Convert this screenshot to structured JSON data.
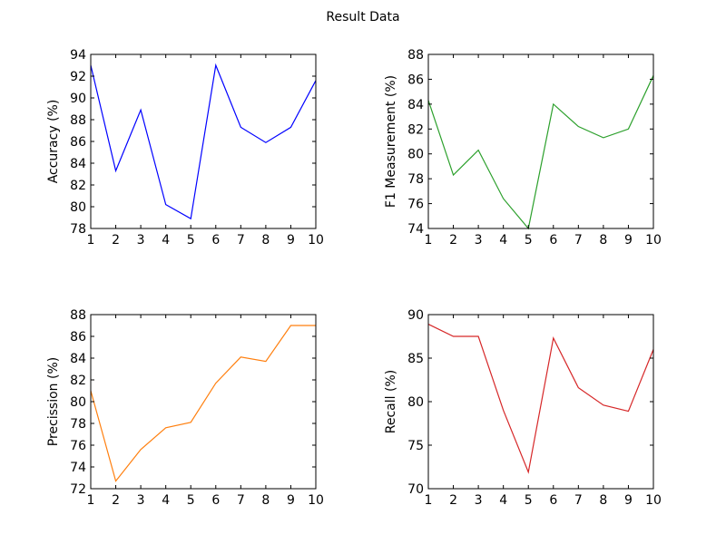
{
  "figure": {
    "title": "Result Data"
  },
  "chart_data": [
    {
      "type": "line",
      "title": "",
      "xlabel": "",
      "ylabel": "Accuracy (%)",
      "xlim": [
        1,
        10
      ],
      "ylim": [
        78,
        94
      ],
      "xticks": [
        1,
        2,
        3,
        4,
        5,
        6,
        7,
        8,
        9,
        10
      ],
      "yticks": [
        78,
        80,
        82,
        84,
        86,
        88,
        90,
        92,
        94
      ],
      "grid": false,
      "color": "#0000ff",
      "x": [
        1,
        2,
        3,
        4,
        5,
        6,
        7,
        8,
        9,
        10
      ],
      "y": [
        93.0,
        83.3,
        88.9,
        80.2,
        78.9,
        93.0,
        87.3,
        85.9,
        87.3,
        91.6
      ]
    },
    {
      "type": "line",
      "title": "",
      "xlabel": "",
      "ylabel": "F1 Measurement (%)",
      "xlim": [
        1,
        10
      ],
      "ylim": [
        74,
        88
      ],
      "xticks": [
        1,
        2,
        3,
        4,
        5,
        6,
        7,
        8,
        9,
        10
      ],
      "yticks": [
        74,
        76,
        78,
        80,
        82,
        84,
        86,
        88
      ],
      "grid": false,
      "color": "#2ca02c",
      "x": [
        1,
        2,
        3,
        4,
        5,
        6,
        7,
        8,
        9,
        10
      ],
      "y": [
        84.3,
        78.3,
        80.3,
        76.4,
        74.0,
        84.0,
        82.2,
        81.3,
        82.0,
        86.3
      ]
    },
    {
      "type": "line",
      "title": "",
      "xlabel": "",
      "ylabel": "Precission (%)",
      "xlim": [
        1,
        10
      ],
      "ylim": [
        72,
        88
      ],
      "xticks": [
        1,
        2,
        3,
        4,
        5,
        6,
        7,
        8,
        9,
        10
      ],
      "yticks": [
        72,
        74,
        76,
        78,
        80,
        82,
        84,
        86,
        88
      ],
      "grid": false,
      "color": "#ff7f0e",
      "x": [
        1,
        2,
        3,
        4,
        5,
        6,
        7,
        8,
        9,
        10
      ],
      "y": [
        81.0,
        72.7,
        75.6,
        77.6,
        78.1,
        81.7,
        84.1,
        83.7,
        87.0,
        87.0
      ]
    },
    {
      "type": "line",
      "title": "",
      "xlabel": "",
      "ylabel": "Recall (%)",
      "xlim": [
        1,
        10
      ],
      "ylim": [
        70,
        90
      ],
      "xticks": [
        1,
        2,
        3,
        4,
        5,
        6,
        7,
        8,
        9,
        10
      ],
      "yticks": [
        70,
        75,
        80,
        85,
        90
      ],
      "grid": false,
      "color": "#d62728",
      "x": [
        1,
        2,
        3,
        4,
        5,
        6,
        7,
        8,
        9,
        10
      ],
      "y": [
        88.9,
        87.5,
        87.5,
        79.0,
        71.9,
        87.3,
        81.6,
        79.6,
        78.9,
        86.0
      ]
    }
  ]
}
